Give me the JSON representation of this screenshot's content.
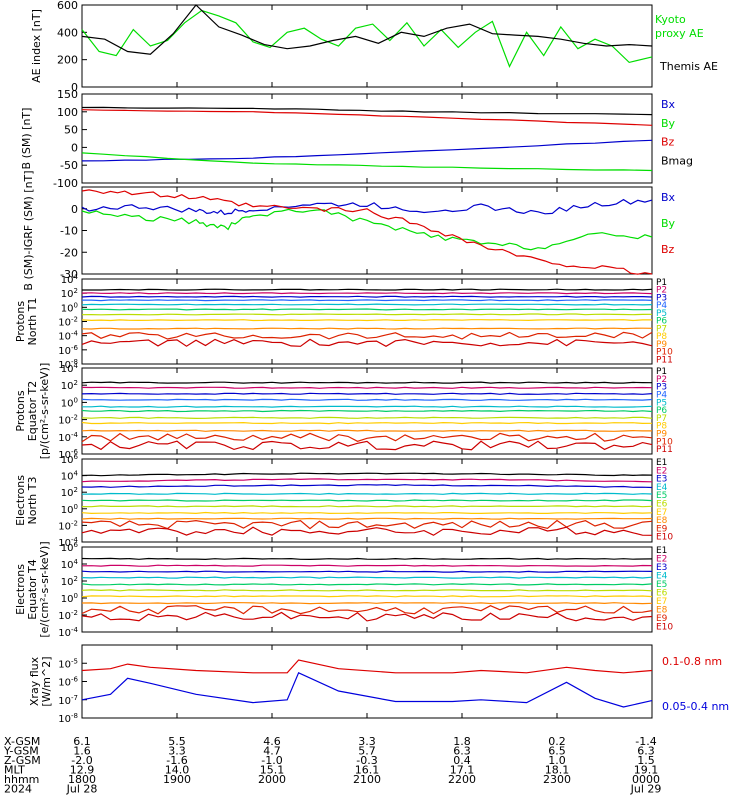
{
  "chart_data": [
    {
      "type": "line",
      "ylabel": "AE index [nT]",
      "ylim": [
        0,
        600
      ],
      "yticks": [
        "0",
        "200",
        "400",
        "600"
      ],
      "series": [
        {
          "name": "Kyoto proxy AE",
          "color": "#00dd00",
          "x": [
            0,
            0.03,
            0.06,
            0.09,
            0.12,
            0.15,
            0.18,
            0.21,
            0.24,
            0.27,
            0.3,
            0.33,
            0.36,
            0.39,
            0.42,
            0.45,
            0.48,
            0.51,
            0.54,
            0.57,
            0.6,
            0.63,
            0.66,
            0.69,
            0.72,
            0.75,
            0.78,
            0.81,
            0.84,
            0.87,
            0.9,
            0.93,
            0.96,
            1.0
          ],
          "values": [
            420,
            260,
            230,
            420,
            300,
            340,
            470,
            560,
            520,
            470,
            330,
            290,
            400,
            430,
            350,
            300,
            430,
            460,
            340,
            470,
            300,
            420,
            290,
            400,
            480,
            150,
            400,
            230,
            440,
            280,
            350,
            300,
            180,
            220
          ]
        },
        {
          "name": "Themis AE",
          "color": "#000000",
          "x": [
            0,
            0.04,
            0.08,
            0.12,
            0.16,
            0.2,
            0.24,
            0.28,
            0.32,
            0.36,
            0.4,
            0.44,
            0.48,
            0.52,
            0.56,
            0.6,
            0.64,
            0.68,
            0.72,
            0.76,
            0.8,
            0.84,
            0.88,
            0.92,
            0.96,
            1.0
          ],
          "values": [
            370,
            350,
            260,
            240,
            390,
            600,
            440,
            380,
            310,
            280,
            300,
            340,
            370,
            320,
            400,
            370,
            430,
            460,
            390,
            380,
            370,
            350,
            320,
            300,
            310,
            300
          ]
        }
      ]
    },
    {
      "type": "line",
      "ylabel": "B (SM) [nT]",
      "ylim": [
        -100,
        150
      ],
      "yticks": [
        "-100",
        "-50",
        "0",
        "50",
        "100",
        "150"
      ],
      "series": [
        {
          "name": "Bx",
          "color": "#0000cc",
          "x": [
            0,
            0.3,
            0.6,
            1.0
          ],
          "values": [
            -38,
            -30,
            -10,
            20
          ]
        },
        {
          "name": "By",
          "color": "#00dd00",
          "x": [
            0,
            0.3,
            0.6,
            1.0
          ],
          "values": [
            -15,
            -45,
            -55,
            -65
          ]
        },
        {
          "name": "Bz",
          "color": "#dd0000",
          "x": [
            0,
            0.3,
            0.6,
            1.0
          ],
          "values": [
            105,
            100,
            85,
            62
          ]
        },
        {
          "name": "Bmag",
          "color": "#000000",
          "x": [
            0,
            0.3,
            0.6,
            1.0
          ],
          "values": [
            112,
            110,
            100,
            92
          ]
        }
      ]
    },
    {
      "type": "line",
      "ylabel": "B (SM)-IGRF (SM) [nT]",
      "ylim": [
        -30,
        10
      ],
      "yticks": [
        "-30",
        "-20",
        "-10",
        "0"
      ],
      "series": [
        {
          "name": "Bx",
          "color": "#0000cc",
          "x": [
            0,
            0.1,
            0.2,
            0.25,
            0.3,
            0.4,
            0.5,
            0.6,
            0.7,
            0.8,
            0.9,
            1.0
          ],
          "values": [
            0,
            1,
            -1,
            -2,
            0,
            2,
            2,
            -1,
            1,
            -2,
            2,
            4
          ]
        },
        {
          "name": "By",
          "color": "#00dd00",
          "x": [
            0,
            0.1,
            0.2,
            0.25,
            0.3,
            0.4,
            0.5,
            0.6,
            0.7,
            0.8,
            0.9,
            1.0
          ],
          "values": [
            -1,
            -4,
            -6,
            -9,
            -3,
            0,
            -6,
            -12,
            -16,
            -18,
            -12,
            -13
          ]
        },
        {
          "name": "Bz",
          "color": "#dd0000",
          "x": [
            0,
            0.1,
            0.2,
            0.3,
            0.4,
            0.5,
            0.6,
            0.7,
            0.8,
            0.9,
            1.0
          ],
          "values": [
            9,
            7,
            5,
            1,
            0,
            -1,
            -8,
            -17,
            -24,
            -27,
            -30
          ]
        }
      ]
    },
    {
      "type": "line",
      "ylabel": "Protons North T1",
      "ylim": [
        "10^-8",
        "10^4"
      ],
      "yticks": [
        "10^-8",
        "10^-6",
        "10^-4",
        "10^-2",
        "10^0",
        "10^2",
        "10^4"
      ],
      "channels": [
        "P1",
        "P2",
        "P3",
        "P4",
        "P5",
        "P6",
        "P7",
        "P8",
        "P9",
        "P10",
        "P11"
      ],
      "colors": [
        "#000000",
        "#cc0066",
        "#0000cc",
        "#2266ff",
        "#00bbcc",
        "#00cc66",
        "#bbdd00",
        "#ffcc00",
        "#ff8800",
        "#dd2200",
        "#cc0000"
      ]
    },
    {
      "type": "line",
      "ylabel": "Protons Equator T2 [p/(cm²-s-sr-keV)]",
      "ylim": [
        "10^-6",
        "10^4"
      ],
      "yticks": [
        "10^-6",
        "10^-4",
        "10^-2",
        "10^0",
        "10^2",
        "10^4"
      ],
      "channels": [
        "P1",
        "P2",
        "P3",
        "P4",
        "P5",
        "P6",
        "P7",
        "P8",
        "P9",
        "P10",
        "P11"
      ],
      "colors": [
        "#000000",
        "#cc0066",
        "#0000cc",
        "#2266ff",
        "#00bbcc",
        "#00cc66",
        "#bbdd00",
        "#ffcc00",
        "#ff8800",
        "#dd2200",
        "#cc0000"
      ]
    },
    {
      "type": "line",
      "ylabel": "Electrons North T3",
      "ylim": [
        "10^-4",
        "10^6"
      ],
      "yticks": [
        "10^-4",
        "10^-2",
        "10^0",
        "10^2",
        "10^4",
        "10^6"
      ],
      "channels": [
        "E1",
        "E2",
        "E3",
        "E4",
        "E5",
        "E6",
        "E7",
        "E8",
        "E9",
        "E10"
      ],
      "colors": [
        "#000000",
        "#cc0066",
        "#0000cc",
        "#00bbcc",
        "#00cc66",
        "#bbdd00",
        "#ffcc00",
        "#ff8800",
        "#dd2200",
        "#cc0000"
      ]
    },
    {
      "type": "line",
      "ylabel": "Electrons Equator T4 [e/(cm²-s-sr-keV)]",
      "ylim": [
        "10^-4",
        "10^6"
      ],
      "yticks": [
        "10^-4",
        "10^-2",
        "10^0",
        "10^2",
        "10^4",
        "10^6"
      ],
      "channels": [
        "E1",
        "E2",
        "E3",
        "E4",
        "E5",
        "E6",
        "E7",
        "E8",
        "E9",
        "E10"
      ],
      "colors": [
        "#000000",
        "#cc0066",
        "#0000cc",
        "#00bbcc",
        "#00cc66",
        "#bbdd00",
        "#ffcc00",
        "#ff8800",
        "#dd2200",
        "#cc0000"
      ]
    },
    {
      "type": "line",
      "ylabel": "Xray flux [W/m^2]",
      "ylim": [
        "10^-8",
        "10^-4"
      ],
      "yticks": [
        "10^-8",
        "10^-7",
        "10^-6",
        "10^-5"
      ],
      "series": [
        {
          "name": "0.1-0.8 nm",
          "color": "#dd0000",
          "x": [
            0,
            0.05,
            0.08,
            0.12,
            0.2,
            0.3,
            0.36,
            0.38,
            0.45,
            0.55,
            0.65,
            0.7,
            0.78,
            0.85,
            0.9,
            0.95,
            1.0
          ],
          "values": [
            4e-06,
            5e-06,
            9e-06,
            6e-06,
            4e-06,
            3e-06,
            3e-06,
            1.5e-05,
            5e-06,
            3e-06,
            3e-06,
            4e-06,
            3e-06,
            6e-06,
            4e-06,
            3e-06,
            4e-06
          ]
        },
        {
          "name": "0.05-0.4 nm",
          "color": "#0000dd",
          "x": [
            0,
            0.05,
            0.08,
            0.12,
            0.2,
            0.3,
            0.36,
            0.38,
            0.45,
            0.55,
            0.65,
            0.7,
            0.78,
            0.85,
            0.9,
            0.95,
            1.0
          ],
          "values": [
            1e-07,
            2e-07,
            1.5e-06,
            8e-07,
            2e-07,
            7e-08,
            1e-07,
            3e-06,
            3e-07,
            8e-08,
            8e-08,
            1e-07,
            7e-08,
            9e-07,
            1.2e-07,
            4e-08,
            9e-08
          ]
        }
      ]
    }
  ],
  "orbit": {
    "row_labels": [
      "X-GSM",
      "Y-GSM",
      "Z-GSM",
      "MLT",
      "hhmm",
      "2024"
    ],
    "columns": [
      [
        "6.1",
        "1.6",
        "-2.0",
        "12.9",
        "1800",
        "Jul 28"
      ],
      [
        "5.5",
        "3.3",
        "-1.6",
        "14.0",
        "1900",
        ""
      ],
      [
        "4.6",
        "4.7",
        "-1.0",
        "15.1",
        "2000",
        ""
      ],
      [
        "3.3",
        "5.7",
        "-0.3",
        "16.1",
        "2100",
        ""
      ],
      [
        "1.8",
        "6.3",
        "0.4",
        "17.1",
        "2200",
        ""
      ],
      [
        "0.2",
        "6.5",
        "1.0",
        "18.1",
        "2300",
        ""
      ],
      [
        "-1.4",
        "6.3",
        "1.5",
        "19.1",
        "0000",
        "Jul 29"
      ]
    ]
  }
}
